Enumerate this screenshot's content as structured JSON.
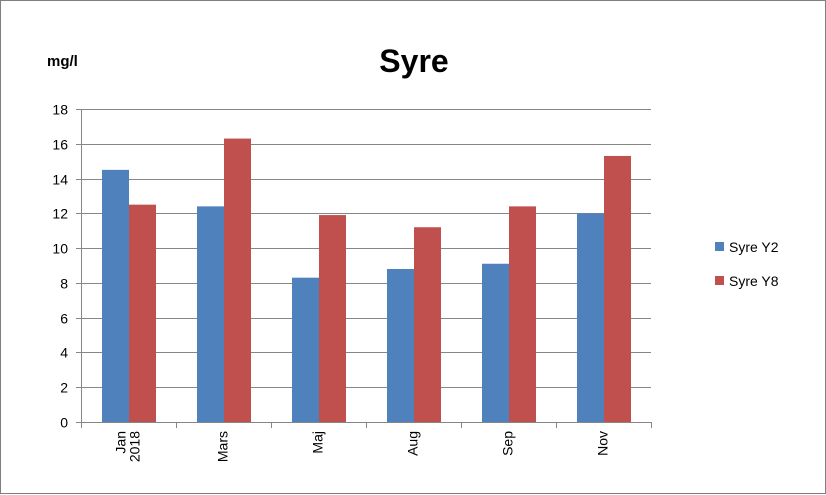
{
  "chart_data": {
    "type": "bar",
    "title": "Syre",
    "ylabel": "mg/l",
    "xlabel": "",
    "categories": [
      [
        "Jan",
        "2018"
      ],
      [
        "Mars"
      ],
      [
        "Maj"
      ],
      [
        "Aug"
      ],
      [
        "Sep"
      ],
      [
        "Nov"
      ]
    ],
    "series": [
      {
        "name": "Syre Y2",
        "color": "#4f81bd",
        "values": [
          14.5,
          12.4,
          8.3,
          8.8,
          9.1,
          12.0
        ]
      },
      {
        "name": "Syre Y8",
        "color": "#c0504d",
        "values": [
          12.5,
          16.3,
          11.9,
          11.2,
          12.4,
          15.3
        ]
      }
    ],
    "ylim": [
      0,
      18
    ],
    "yticks": [
      0,
      2,
      4,
      6,
      8,
      10,
      12,
      14,
      16,
      18
    ],
    "grid": true,
    "legend": "right"
  }
}
